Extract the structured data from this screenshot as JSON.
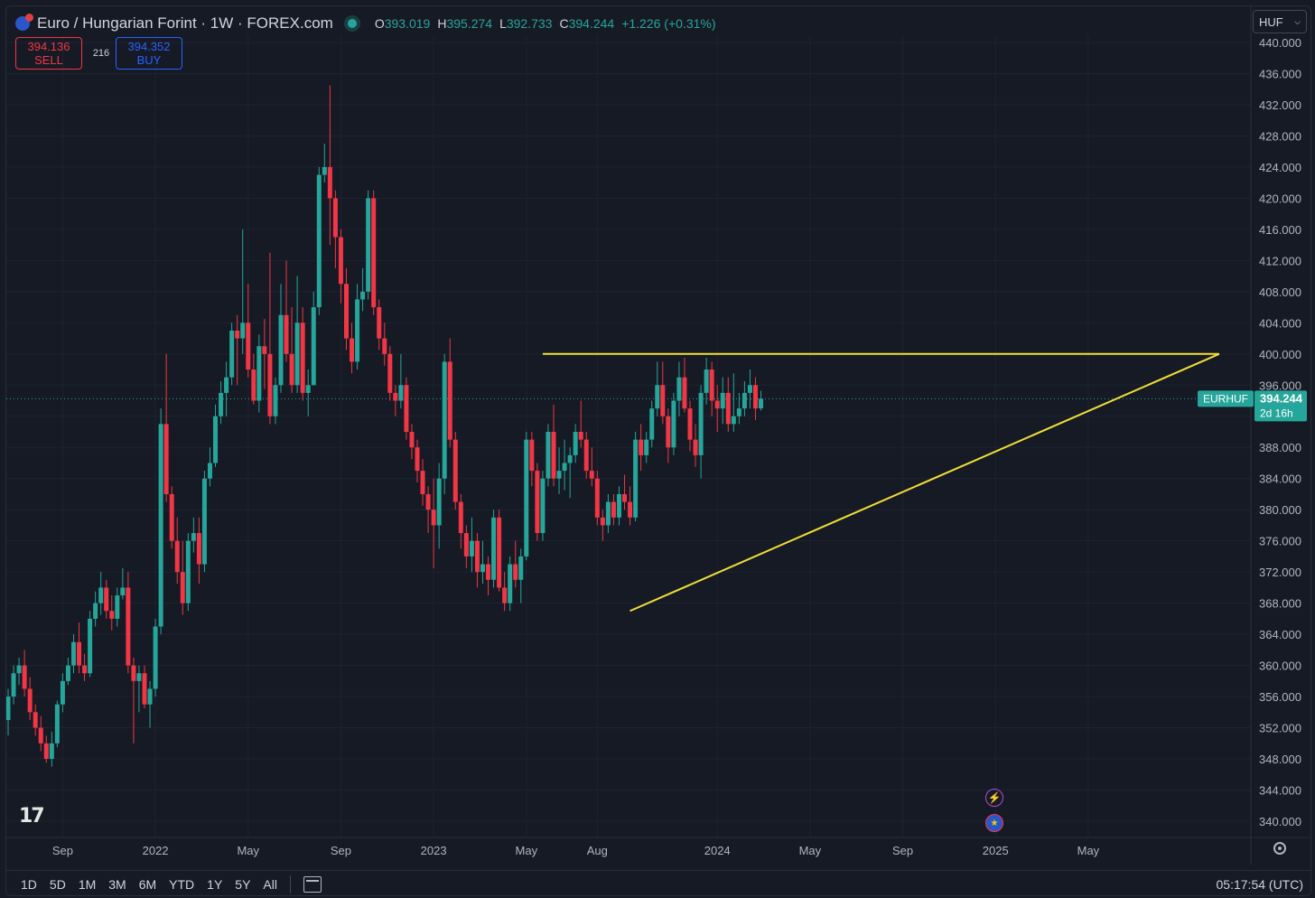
{
  "header": {
    "symbol_title": "Euro / Hungarian Forint · 1W · FOREX.com",
    "ohlc": [
      {
        "key": "O",
        "value": "393.019"
      },
      {
        "key": "H",
        "value": "395.274"
      },
      {
        "key": "L",
        "value": "392.733"
      },
      {
        "key": "C",
        "value": "394.244"
      }
    ],
    "change": "+1.226 (+0.31%)",
    "sell_price": "394.136",
    "sell_label": "SELL",
    "spread": "216",
    "buy_price": "394.352",
    "buy_label": "BUY",
    "currency": "HUF"
  },
  "price_tag": {
    "symbol": "EURHUF",
    "price": "394.244",
    "countdown": "2d 16h"
  },
  "toolbar": {
    "timeframes": [
      "1D",
      "5D",
      "1M",
      "3M",
      "6M",
      "YTD",
      "1Y",
      "5Y",
      "All"
    ],
    "clock": "05:17:54 (UTC)"
  },
  "colors": {
    "up": "#26a69a",
    "down": "#f23645",
    "trendline": "#f2e035",
    "background": "#161a25",
    "grid": "#1f2330"
  },
  "icons": {
    "logo": "tradingview-logo-icon",
    "settings": "gear-icon",
    "events": [
      "flash-event-icon",
      "eu-flag-event-icon"
    ]
  },
  "chart_data": {
    "type": "candlestick",
    "ylim": [
      338,
      441
    ],
    "yticks": [
      "440.000",
      "436.000",
      "432.000",
      "428.000",
      "424.000",
      "420.000",
      "416.000",
      "412.000",
      "408.000",
      "404.000",
      "400.000",
      "396.000",
      "392.000",
      "388.000",
      "384.000",
      "380.000",
      "376.000",
      "372.000",
      "368.000",
      "364.000",
      "360.000",
      "356.000",
      "352.000",
      "348.000",
      "344.000",
      "340.000"
    ],
    "xticks": [
      {
        "label": "Sep",
        "week": 10
      },
      {
        "label": "2022",
        "week": 27
      },
      {
        "label": "May",
        "week": 44
      },
      {
        "label": "Sep",
        "week": 61
      },
      {
        "label": "2023",
        "week": 78
      },
      {
        "label": "May",
        "week": 95
      },
      {
        "label": "Aug",
        "week": 108
      },
      {
        "label": "2024",
        "week": 130
      },
      {
        "label": "May",
        "week": 147
      },
      {
        "label": "Sep",
        "week": 164
      },
      {
        "label": "2025",
        "week": 181
      },
      {
        "label": "May",
        "week": 198
      }
    ],
    "candles": [
      [
        353.0,
        357.0,
        351.0,
        356.0
      ],
      [
        356.0,
        360.0,
        355.0,
        359.0
      ],
      [
        359.0,
        361.0,
        357.5,
        360.0
      ],
      [
        360.0,
        362.0,
        356.0,
        357.0
      ],
      [
        357.0,
        358.5,
        353.0,
        354.0
      ],
      [
        354.0,
        355.0,
        351.0,
        352.0
      ],
      [
        352.0,
        353.5,
        349.0,
        350.0
      ],
      [
        350.0,
        351.0,
        347.5,
        348.0
      ],
      [
        348.0,
        351.5,
        347.0,
        350.0
      ],
      [
        350.0,
        355.5,
        349.5,
        355.0
      ],
      [
        355.0,
        359.0,
        354.0,
        358.0
      ],
      [
        358.0,
        361.0,
        357.5,
        360.0
      ],
      [
        360.0,
        364.0,
        359.0,
        363.0
      ],
      [
        363.0,
        365.5,
        359.0,
        360.0
      ],
      [
        360.0,
        361.5,
        358.0,
        359.0
      ],
      [
        359.0,
        367.0,
        358.5,
        366.0
      ],
      [
        366.0,
        369.5,
        365.0,
        368.0
      ],
      [
        368.0,
        372.0,
        366.5,
        370.0
      ],
      [
        370.0,
        371.0,
        366.0,
        367.0
      ],
      [
        367.0,
        369.0,
        364.5,
        366.0
      ],
      [
        366.0,
        370.0,
        365.0,
        369.0
      ],
      [
        369.0,
        372.5,
        368.5,
        370.0
      ],
      [
        370.0,
        372.0,
        359.0,
        360.0
      ],
      [
        360.0,
        361.0,
        350.0,
        358.0
      ],
      [
        358.0,
        360.0,
        354.0,
        359.0
      ],
      [
        359.0,
        360.0,
        354.5,
        355.0
      ],
      [
        355.0,
        358.0,
        352.0,
        357.0
      ],
      [
        357.0,
        366.0,
        356.0,
        365.0
      ],
      [
        365.0,
        393.0,
        364.0,
        391.0
      ],
      [
        391.0,
        400.0,
        381.0,
        382.0
      ],
      [
        382.0,
        383.0,
        375.0,
        376.0
      ],
      [
        376.0,
        379.0,
        370.5,
        372.0
      ],
      [
        372.0,
        376.0,
        366.5,
        368.0
      ],
      [
        368.0,
        377.0,
        367.0,
        376.0
      ],
      [
        376.0,
        379.0,
        374.5,
        377.0
      ],
      [
        377.0,
        379.0,
        370.5,
        373.0
      ],
      [
        373.0,
        385.0,
        372.0,
        384.0
      ],
      [
        384.0,
        388.0,
        383.0,
        386.0
      ],
      [
        386.0,
        393.5,
        385.5,
        392.0
      ],
      [
        392.0,
        396.5,
        391.0,
        395.0
      ],
      [
        395.0,
        399.0,
        392.0,
        397.0
      ],
      [
        397.0,
        404.0,
        396.0,
        403.0
      ],
      [
        403.0,
        405.0,
        396.0,
        402.0
      ],
      [
        402.0,
        416.0,
        400.0,
        404.0
      ],
      [
        404.0,
        409.0,
        397.0,
        398.0
      ],
      [
        398.0,
        400.0,
        393.5,
        394.0
      ],
      [
        394.0,
        402.5,
        392.5,
        401.0
      ],
      [
        401.0,
        404.5,
        395.5,
        400.0
      ],
      [
        400.0,
        413.0,
        391.0,
        392.0
      ],
      [
        392.0,
        397.0,
        391.0,
        396.0
      ],
      [
        396.0,
        409.0,
        395.0,
        405.0
      ],
      [
        405.0,
        412.0,
        399.0,
        400.0
      ],
      [
        400.0,
        406.0,
        395.0,
        396.0
      ],
      [
        396.0,
        410.0,
        395.0,
        404.0
      ],
      [
        404.0,
        406.0,
        394.0,
        395.0
      ],
      [
        395.0,
        398.0,
        392.0,
        396.0
      ],
      [
        396.0,
        408.0,
        396.0,
        406.0
      ],
      [
        406.0,
        424.0,
        405.0,
        423.0
      ],
      [
        423.0,
        427.0,
        422.0,
        424.0
      ],
      [
        424.0,
        434.5,
        414.0,
        420.0
      ],
      [
        420.0,
        421.0,
        411.0,
        415.0
      ],
      [
        415.0,
        416.0,
        406.5,
        409.0
      ],
      [
        409.0,
        411.0,
        400.5,
        402.0
      ],
      [
        402.0,
        404.0,
        397.5,
        399.0
      ],
      [
        399.0,
        409.0,
        398.0,
        407.0
      ],
      [
        407.0,
        411.0,
        405.5,
        408.0
      ],
      [
        408.0,
        421.0,
        407.0,
        420.0
      ],
      [
        420.0,
        421.0,
        405.0,
        406.0
      ],
      [
        406.0,
        407.0,
        400.5,
        402.0
      ],
      [
        402.0,
        404.0,
        398.5,
        400.0
      ],
      [
        400.0,
        401.0,
        394.0,
        395.0
      ],
      [
        395.0,
        396.0,
        392.0,
        394.0
      ],
      [
        394.0,
        400.0,
        393.0,
        396.0
      ],
      [
        396.0,
        397.0,
        389.0,
        390.0
      ],
      [
        390.0,
        391.0,
        386.5,
        388.0
      ],
      [
        388.0,
        389.0,
        383.5,
        385.0
      ],
      [
        385.0,
        386.5,
        380.5,
        382.0
      ],
      [
        382.0,
        383.0,
        377.0,
        380.0
      ],
      [
        380.0,
        384.0,
        372.5,
        378.0
      ],
      [
        378.0,
        386.0,
        375.0,
        384.0
      ],
      [
        384.0,
        400.0,
        382.0,
        399.0
      ],
      [
        399.0,
        402.0,
        388.0,
        389.0
      ],
      [
        389.0,
        390.0,
        380.0,
        381.0
      ],
      [
        381.0,
        382.0,
        375.0,
        377.0
      ],
      [
        377.0,
        378.0,
        372.5,
        374.0
      ],
      [
        374.0,
        379.0,
        372.0,
        376.0
      ],
      [
        376.0,
        377.0,
        370.0,
        372.0
      ],
      [
        372.0,
        376.0,
        370.5,
        373.0
      ],
      [
        373.0,
        374.0,
        369.0,
        371.0
      ],
      [
        371.0,
        380.0,
        370.0,
        379.0
      ],
      [
        379.0,
        380.0,
        369.5,
        370.0
      ],
      [
        370.0,
        372.0,
        367.0,
        368.0
      ],
      [
        368.0,
        374.0,
        367.0,
        373.0
      ],
      [
        373.0,
        376.0,
        370.0,
        371.0
      ],
      [
        371.0,
        375.0,
        368.0,
        374.0
      ],
      [
        374.0,
        390.0,
        373.5,
        389.0
      ],
      [
        389.0,
        390.0,
        383.0,
        385.0
      ],
      [
        385.0,
        386.0,
        376.0,
        377.0
      ],
      [
        377.0,
        385.0,
        376.0,
        384.0
      ],
      [
        384.0,
        391.0,
        383.0,
        390.0
      ],
      [
        390.0,
        393.5,
        383.0,
        384.0
      ],
      [
        384.0,
        388.0,
        382.0,
        385.0
      ],
      [
        385.0,
        389.0,
        382.5,
        386.0
      ],
      [
        386.0,
        388.0,
        381.5,
        387.0
      ],
      [
        387.0,
        391.0,
        386.0,
        390.0
      ],
      [
        390.0,
        394.0,
        388.0,
        389.0
      ],
      [
        389.0,
        390.0,
        384.0,
        385.0
      ],
      [
        385.0,
        388.0,
        383.0,
        384.0
      ],
      [
        384.0,
        385.0,
        378.0,
        379.0
      ],
      [
        379.0,
        380.0,
        376.0,
        378.0
      ],
      [
        378.0,
        382.0,
        377.0,
        381.0
      ],
      [
        381.0,
        382.0,
        378.0,
        379.0
      ],
      [
        379.0,
        383.0,
        378.0,
        382.0
      ],
      [
        382.0,
        384.5,
        380.0,
        381.0
      ],
      [
        381.0,
        383.0,
        378.0,
        379.0
      ],
      [
        379.0,
        390.0,
        378.5,
        389.0
      ],
      [
        389.0,
        391.0,
        385.0,
        387.0
      ],
      [
        387.0,
        390.0,
        386.0,
        389.0
      ],
      [
        389.0,
        394.0,
        388.0,
        393.0
      ],
      [
        393.0,
        399.0,
        392.0,
        396.0
      ],
      [
        396.0,
        399.0,
        391.0,
        392.0
      ],
      [
        392.0,
        393.0,
        386.0,
        388.0
      ],
      [
        388.0,
        395.0,
        387.0,
        394.0
      ],
      [
        394.0,
        399.0,
        392.0,
        397.0
      ],
      [
        397.0,
        399.5,
        392.5,
        393.0
      ],
      [
        393.0,
        394.0,
        387.5,
        389.0
      ],
      [
        389.0,
        391.0,
        385.5,
        387.0
      ],
      [
        387.0,
        396.0,
        384.0,
        395.0
      ],
      [
        395.0,
        399.5,
        393.5,
        398.0
      ],
      [
        398.0,
        399.0,
        392.0,
        394.0
      ],
      [
        394.0,
        396.0,
        390.0,
        393.0
      ],
      [
        393.0,
        397.0,
        391.0,
        395.0
      ],
      [
        395.0,
        397.0,
        390.0,
        391.0
      ],
      [
        391.0,
        397.5,
        390.0,
        392.0
      ],
      [
        392.0,
        395.0,
        391.0,
        393.0
      ],
      [
        393.0,
        396.5,
        392.0,
        395.0
      ],
      [
        395.0,
        398.0,
        393.0,
        396.0
      ],
      [
        396.0,
        397.0,
        391.5,
        393.0
      ],
      [
        393.019,
        395.274,
        392.733,
        394.244
      ]
    ],
    "support_line": {
      "from": {
        "week": 114,
        "price": 367
      },
      "to": {
        "week": 222,
        "price": 400
      }
    },
    "resistance_line": {
      "from": {
        "week": 98,
        "price": 400
      },
      "to": {
        "week": 222,
        "price": 400
      }
    }
  }
}
